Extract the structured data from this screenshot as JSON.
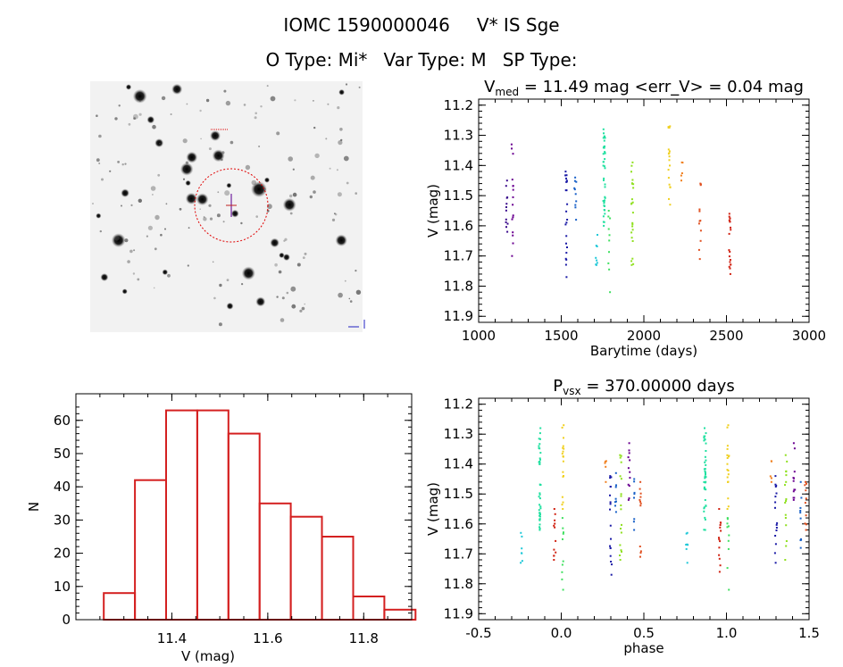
{
  "header": {
    "object_id": "IOMC 1590000046",
    "star_name": "V* IS Sge",
    "o_type": "O Type: Mi*",
    "var_type": "Var Type: M",
    "sp_type": "SP Type:"
  },
  "image_panel": {
    "description_icon": "star-field-image"
  },
  "colors": {
    "histogram": "#d42020",
    "series": [
      "#3a0a8c",
      "#6a0090",
      "#1a1aa6",
      "#1860c8",
      "#1ec8d8",
      "#20e0a0",
      "#40e060",
      "#90e020",
      "#f0d020",
      "#f08020",
      "#e05020",
      "#d02010"
    ]
  },
  "chart_data": [
    {
      "type": "scatter",
      "title": "V_med = 11.49 mag <err_V> = 0.04 mag",
      "title_parts": {
        "v": "V",
        "sub": "med",
        "rest": " = 11.49 mag <err_V> = 0.04 mag"
      },
      "xlabel": "Barytime (days)",
      "ylabel": "V (mag)",
      "xlim": [
        1000,
        3000
      ],
      "ylim": [
        11.92,
        11.18
      ],
      "xticks": [
        1000,
        1500,
        2000,
        2500,
        3000
      ],
      "yticks": [
        11.2,
        11.3,
        11.4,
        11.5,
        11.6,
        11.7,
        11.8,
        11.9
      ],
      "groups": [
        {
          "x": 1170,
          "ymin": 11.45,
          "ymax": 11.62,
          "n": 12,
          "color": "#3a0a8c"
        },
        {
          "x": 1205,
          "ymin": 11.33,
          "ymax": 11.7,
          "n": 16,
          "color": "#6a0090"
        },
        {
          "x": 1530,
          "ymin": 11.42,
          "ymax": 11.77,
          "n": 22,
          "color": "#1a1aa6"
        },
        {
          "x": 1585,
          "ymin": 11.44,
          "ymax": 11.58,
          "n": 10,
          "color": "#1860c8"
        },
        {
          "x": 1715,
          "ymin": 11.63,
          "ymax": 11.73,
          "n": 8,
          "color": "#1ec8d8"
        },
        {
          "x": 1760,
          "ymin": 11.28,
          "ymax": 11.6,
          "n": 40,
          "color": "#20e0a0"
        },
        {
          "x": 1790,
          "ymin": 11.55,
          "ymax": 11.82,
          "n": 10,
          "color": "#40e060"
        },
        {
          "x": 1930,
          "ymin": 11.39,
          "ymax": 11.73,
          "n": 24,
          "color": "#90e020"
        },
        {
          "x": 2155,
          "ymin": 11.27,
          "ymax": 11.53,
          "n": 18,
          "color": "#f0d020"
        },
        {
          "x": 2230,
          "ymin": 11.39,
          "ymax": 11.45,
          "n": 5,
          "color": "#f08020"
        },
        {
          "x": 2340,
          "ymin": 11.46,
          "ymax": 11.71,
          "n": 12,
          "color": "#e05020"
        },
        {
          "x": 2520,
          "ymin": 11.56,
          "ymax": 11.76,
          "n": 20,
          "color": "#d02010"
        }
      ]
    },
    {
      "type": "bar",
      "title": "",
      "xlabel": "V (mag)",
      "ylabel": "N",
      "xlim": [
        11.2,
        11.9
      ],
      "ylim": [
        0,
        68
      ],
      "xticks": [
        11.4,
        11.6,
        11.8
      ],
      "yticks": [
        0,
        10,
        20,
        30,
        40,
        50,
        60
      ],
      "bin_edges": [
        11.258,
        11.323,
        11.388,
        11.453,
        11.518,
        11.583,
        11.648,
        11.713,
        11.778,
        11.843
      ],
      "values": [
        8,
        42,
        63,
        63,
        56,
        35,
        31,
        25,
        7,
        3
      ]
    },
    {
      "type": "scatter",
      "title": "P_vsx = 370.00000 days",
      "title_parts": {
        "v": "P",
        "sub": "vsx",
        "rest": " = 370.00000 days"
      },
      "xlabel": "phase",
      "ylabel": "V (mag)",
      "xlim": [
        -0.5,
        1.5
      ],
      "ylim": [
        11.92,
        11.18
      ],
      "xticks": [
        -0.5,
        0.0,
        0.5,
        1.0,
        1.5
      ],
      "yticks": [
        11.2,
        11.3,
        11.4,
        11.5,
        11.6,
        11.7,
        11.8,
        11.9
      ],
      "groups": [
        {
          "x": -0.24,
          "ymin": 11.63,
          "ymax": 11.73,
          "n": 7,
          "color": "#1ec8d8"
        },
        {
          "x": -0.13,
          "ymin": 11.28,
          "ymax": 11.62,
          "n": 40,
          "color": "#20e0a0"
        },
        {
          "x": -0.04,
          "ymin": 11.55,
          "ymax": 11.72,
          "n": 12,
          "color": "#d02010"
        },
        {
          "x": 0.01,
          "ymin": 11.27,
          "ymax": 11.55,
          "n": 18,
          "color": "#f0d020"
        },
        {
          "x": 0.01,
          "ymin": 11.58,
          "ymax": 11.82,
          "n": 10,
          "color": "#40e060"
        },
        {
          "x": 0.27,
          "ymin": 11.39,
          "ymax": 11.46,
          "n": 5,
          "color": "#f08020"
        },
        {
          "x": 0.3,
          "ymin": 11.44,
          "ymax": 11.77,
          "n": 18,
          "color": "#1a1aa6"
        },
        {
          "x": 0.33,
          "ymin": 11.43,
          "ymax": 11.56,
          "n": 8,
          "color": "#1860c8"
        },
        {
          "x": 0.36,
          "ymin": 11.37,
          "ymax": 11.72,
          "n": 18,
          "color": "#90e020"
        },
        {
          "x": 0.41,
          "ymin": 11.33,
          "ymax": 11.52,
          "n": 12,
          "color": "#6a0090"
        },
        {
          "x": 0.44,
          "ymin": 11.45,
          "ymax": 11.62,
          "n": 8,
          "color": "#1860c8"
        },
        {
          "x": 0.48,
          "ymin": 11.46,
          "ymax": 11.71,
          "n": 12,
          "color": "#e05020"
        },
        {
          "x": 0.76,
          "ymin": 11.63,
          "ymax": 11.73,
          "n": 7,
          "color": "#1ec8d8"
        },
        {
          "x": 0.87,
          "ymin": 11.28,
          "ymax": 11.62,
          "n": 40,
          "color": "#20e0a0"
        },
        {
          "x": 0.96,
          "ymin": 11.55,
          "ymax": 11.76,
          "n": 14,
          "color": "#d02010"
        },
        {
          "x": 1.01,
          "ymin": 11.27,
          "ymax": 11.55,
          "n": 18,
          "color": "#f0d020"
        },
        {
          "x": 1.01,
          "ymin": 11.58,
          "ymax": 11.82,
          "n": 10,
          "color": "#40e060"
        },
        {
          "x": 1.27,
          "ymin": 11.39,
          "ymax": 11.46,
          "n": 5,
          "color": "#f08020"
        },
        {
          "x": 1.3,
          "ymin": 11.44,
          "ymax": 11.73,
          "n": 16,
          "color": "#1a1aa6"
        },
        {
          "x": 1.36,
          "ymin": 11.37,
          "ymax": 11.72,
          "n": 16,
          "color": "#90e020"
        },
        {
          "x": 1.41,
          "ymin": 11.33,
          "ymax": 11.52,
          "n": 12,
          "color": "#6a0090"
        },
        {
          "x": 1.45,
          "ymin": 11.46,
          "ymax": 11.68,
          "n": 10,
          "color": "#1860c8"
        },
        {
          "x": 1.48,
          "ymin": 11.46,
          "ymax": 11.62,
          "n": 10,
          "color": "#e05020"
        }
      ]
    }
  ]
}
